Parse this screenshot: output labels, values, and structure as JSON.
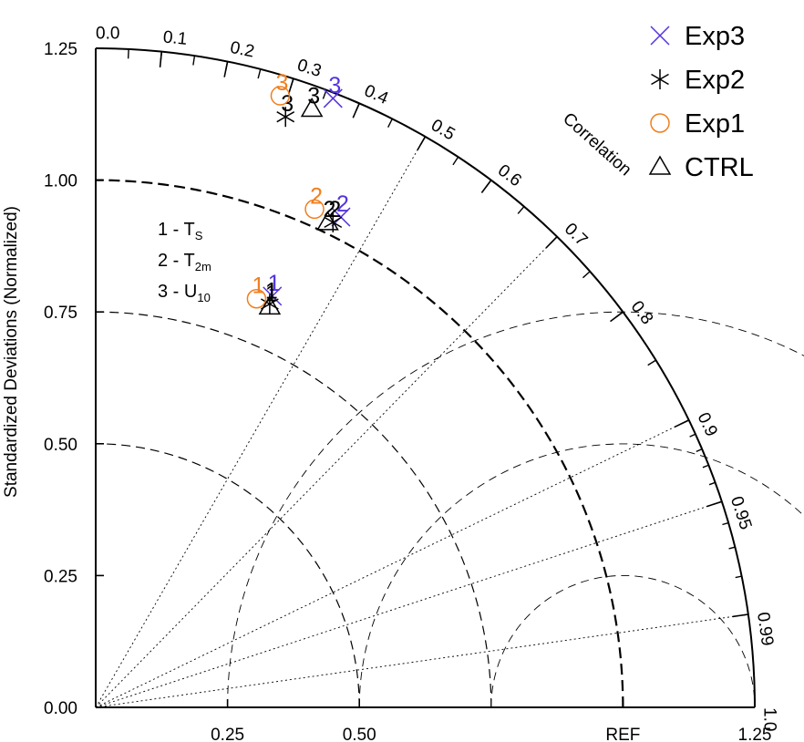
{
  "chart_data": {
    "type": "taylor-diagram",
    "title": "",
    "ylabel": "Standardized Deviations (Normalized)",
    "arc_label": "Correlation",
    "ref_label": "REF",
    "ylim": [
      0,
      1.25
    ],
    "y_ticks": [
      0.0,
      0.25,
      0.5,
      0.75,
      1.0,
      1.25
    ],
    "y_tick_labels": [
      "0.00",
      "0.25",
      "0.50",
      "0.75",
      "1.00",
      "1.25"
    ],
    "x_ticks": [
      0.25,
      0.5,
      1.0,
      1.25
    ],
    "x_tick_labels": [
      "0.25",
      "0.50",
      "REF",
      "1.25"
    ],
    "corr_ticks": [
      0.0,
      0.1,
      0.2,
      0.3,
      0.4,
      0.5,
      0.6,
      0.7,
      0.8,
      0.9,
      0.95,
      0.99,
      1.0
    ],
    "corr_tick_labels": [
      "0.0",
      "0.1",
      "0.2",
      "0.3",
      "0.4",
      "0.5",
      "0.6",
      "0.7",
      "0.8",
      "0.9",
      "0.95",
      "0.99",
      "1.0"
    ],
    "corr_minor_step": 0.05,
    "radial_lines": [
      0.5,
      0.7,
      0.9,
      0.95,
      0.99
    ],
    "sd_arcs": [
      0.5,
      0.75,
      1.0
    ],
    "variables": [
      {
        "id": "1",
        "name": "T",
        "sub": "S"
      },
      {
        "id": "2",
        "name": "T",
        "sub": "2m"
      },
      {
        "id": "3",
        "name": "U",
        "sub": "10"
      }
    ],
    "series": [
      {
        "name": "Exp3",
        "marker": "x",
        "color": "#5533dd",
        "points": [
          {
            "id": "1",
            "x": 0.335,
            "y": 0.78
          },
          {
            "id": "2",
            "x": 0.465,
            "y": 0.93
          },
          {
            "id": "3",
            "x": 0.45,
            "y": 1.155
          }
        ]
      },
      {
        "name": "Exp2",
        "marker": "asterisk",
        "color": "#000000",
        "points": [
          {
            "id": "1",
            "x": 0.33,
            "y": 0.765
          },
          {
            "id": "2",
            "x": 0.45,
            "y": 0.92
          },
          {
            "id": "3",
            "x": 0.36,
            "y": 1.12
          }
        ]
      },
      {
        "name": "Exp1",
        "marker": "circle",
        "color": "#f07f1e",
        "points": [
          {
            "id": "1",
            "x": 0.305,
            "y": 0.775
          },
          {
            "id": "2",
            "x": 0.415,
            "y": 0.945
          },
          {
            "id": "3",
            "x": 0.35,
            "y": 1.16
          }
        ]
      },
      {
        "name": "CTRL",
        "marker": "triangle",
        "color": "#000000",
        "points": [
          {
            "id": "1",
            "x": 0.33,
            "y": 0.76
          },
          {
            "id": "2",
            "x": 0.44,
            "y": 0.92
          },
          {
            "id": "3",
            "x": 0.41,
            "y": 1.135
          }
        ]
      }
    ],
    "legend_position": "top-right"
  }
}
